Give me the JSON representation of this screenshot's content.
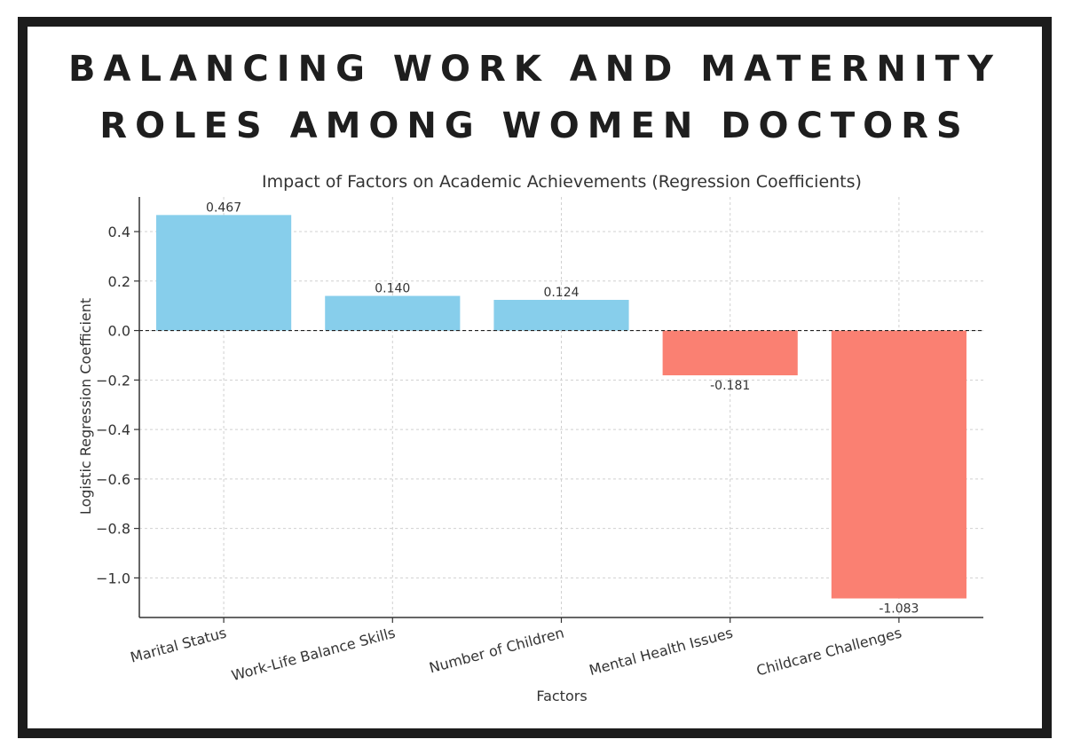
{
  "poster": {
    "title_line1": "BALANCING WORK AND MATERNITY",
    "title_line2": "ROLES AMONG WOMEN DOCTORS"
  },
  "colors": {
    "positive": "#87ceeb",
    "negative": "#fa8072",
    "frame": "#1c1c1c"
  },
  "chart_data": {
    "type": "bar",
    "title": "Impact of Factors on Academic Achievements (Regression Coefficients)",
    "xlabel": "Factors",
    "ylabel": "Logistic Regression Coefficient",
    "categories": [
      "Marital Status",
      "Work-Life Balance Skills",
      "Number of Children",
      "Mental Health Issues",
      "Childcare Challenges"
    ],
    "values": [
      0.467,
      0.14,
      0.124,
      -0.181,
      -1.083
    ],
    "value_labels": [
      "0.467",
      "0.140",
      "0.124",
      "-0.181",
      "-1.083"
    ],
    "ylim": [
      -1.16,
      0.54
    ],
    "yticks": [
      0.4,
      0.2,
      0.0,
      -0.2,
      -0.4,
      -0.6,
      -0.8,
      -1.0
    ],
    "ytick_labels": [
      "0.4",
      "0.2",
      "0.0",
      "−0.2",
      "−0.4",
      "−0.6",
      "−0.8",
      "−1.0"
    ],
    "grid": true,
    "zero_line": "dashed"
  }
}
